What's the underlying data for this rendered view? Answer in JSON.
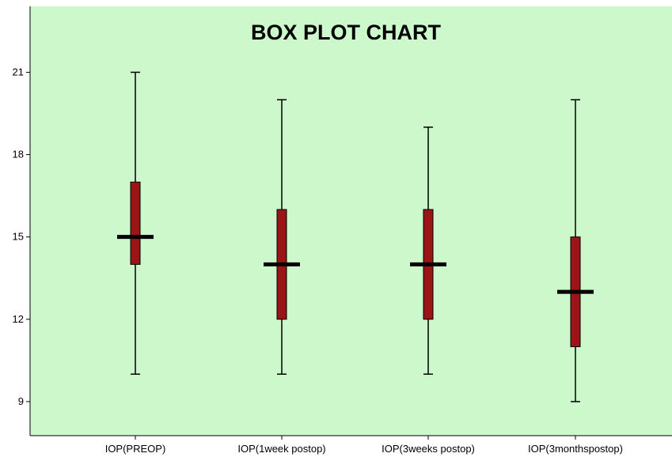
{
  "chart_data": {
    "type": "box",
    "title": "BOX PLOT CHART",
    "xlabel": "",
    "ylabel": "",
    "ylim": [
      7.5,
      23
    ],
    "yticks": [
      9,
      12,
      15,
      18,
      21
    ],
    "grid": false,
    "legend": "none",
    "categories": [
      "IOP(PREOP)",
      "IOP(1week postop)",
      "IOP(3weeks postop)",
      "IOP(3monthspostop)"
    ],
    "boxes": [
      {
        "min": 10,
        "q1": 14,
        "median": 15,
        "q3": 17,
        "max": 21
      },
      {
        "min": 10,
        "q1": 12,
        "median": 14,
        "q3": 16,
        "max": 20
      },
      {
        "min": 10,
        "q1": 12,
        "median": 14,
        "q3": 16,
        "max": 19
      },
      {
        "min": 9,
        "q1": 11,
        "median": 13,
        "q3": 15,
        "max": 20
      }
    ],
    "colors": {
      "plot_background": "#ccf8cc",
      "box_fill": "#9b1416",
      "median_line": "#000000",
      "whisker": "#000000"
    }
  }
}
